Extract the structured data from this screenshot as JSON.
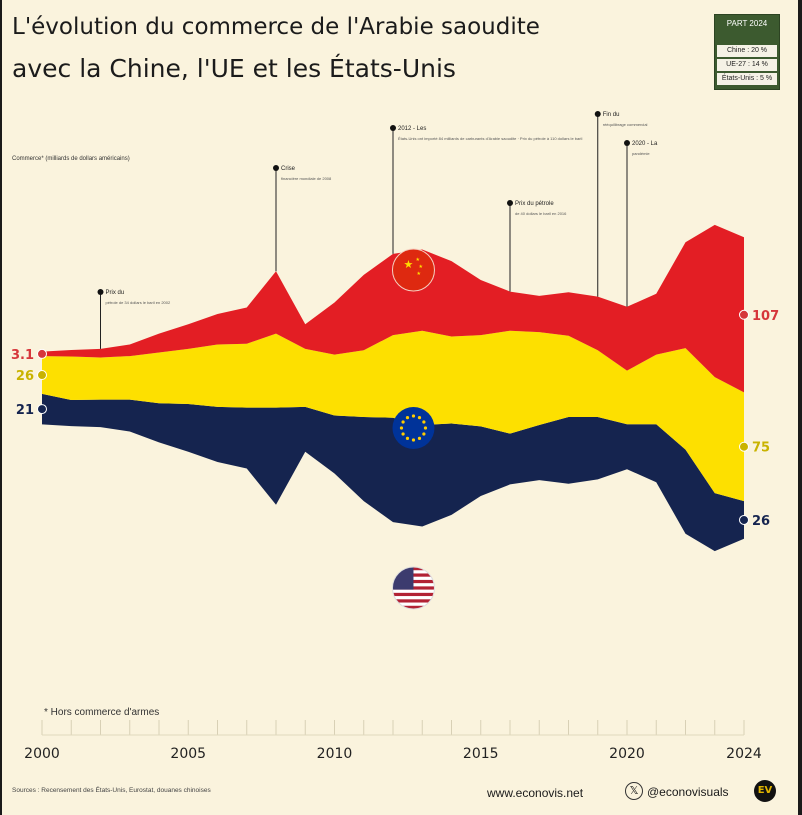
{
  "title_line1": "L'évolution du commerce de l'Arabie saoudite",
  "title_line2": "avec la Chine, l'UE et les États-Unis",
  "legend": {
    "title": "PART 2024",
    "rows": [
      "Chine : 20 %",
      "UE-27 : 14 %",
      "États-Unis : 5 %"
    ]
  },
  "ylabel": "Commerce* (milliards de dollars américains)",
  "footnote": "* Hors commerce d'armes",
  "sources": "Sources : Recensement des États-Unis, Eurostat, douanes chinoises",
  "site": "www.econovis.net",
  "handle": "@econovisuals",
  "logo_text": "EV",
  "x_icon": "𝕏",
  "colors": {
    "china": "#e31e24",
    "eu": "#fde000",
    "us": "#15244f",
    "background": "#faf3dd"
  },
  "flags": [
    "china-flag-icon",
    "eu-flag-icon",
    "us-flag-icon"
  ],
  "annotations": [
    {
      "year": 2002,
      "title": "Prix du",
      "body": "pétrole de 34 dollars le baril en 2002"
    },
    {
      "year": 2008,
      "title": "Crise",
      "body": "financière mondiale de 2008"
    },
    {
      "year": 2012,
      "title": "2012 - Les",
      "body": "États-Unis ont importé 84 milliards de carburants d'Arabie saoudite · Prix du pétrole à 110 dollars le baril"
    },
    {
      "year": 2016,
      "title": "Prix du pétrole",
      "body": "de 40 dollars le baril en 2016"
    },
    {
      "year": 2019,
      "title": "Fin du",
      "body": "rééquilibrage commercial"
    },
    {
      "year": 2020,
      "title": "2020 - La",
      "body": "pandémie"
    }
  ],
  "chart_data": {
    "type": "area",
    "stacked": true,
    "x": [
      2000,
      2001,
      2002,
      2003,
      2004,
      2005,
      2006,
      2007,
      2008,
      2009,
      2010,
      2011,
      2012,
      2013,
      2014,
      2015,
      2016,
      2017,
      2018,
      2019,
      2020,
      2021,
      2022,
      2023,
      2024
    ],
    "x_ticks": [
      2000,
      2005,
      2010,
      2015,
      2020,
      2024
    ],
    "series": [
      {
        "name": "États-Unis",
        "start_label": "21",
        "end_label": "26",
        "values": [
          21,
          18,
          19,
          22,
          27,
          33,
          38,
          42,
          67,
          31,
          40,
          58,
          72,
          70,
          63,
          48,
          35,
          38,
          46,
          43,
          31,
          40,
          58,
          40,
          26
        ]
      },
      {
        "name": "UE",
        "start_label": "26",
        "end_label": "75",
        "values": [
          26,
          30,
          29,
          30,
          35,
          38,
          43,
          44,
          51,
          40,
          42,
          46,
          57,
          65,
          60,
          63,
          71,
          64,
          56,
          46,
          37,
          48,
          70,
          80,
          75
        ]
      },
      {
        "name": "Chine",
        "start_label": "3.1",
        "end_label": "107",
        "values": [
          3.1,
          4.5,
          6,
          8,
          13,
          17,
          21,
          25,
          43,
          17,
          36,
          52,
          56,
          56,
          52,
          38,
          27,
          25,
          30,
          37,
          44,
          42,
          73,
          105,
          107
        ]
      }
    ]
  }
}
